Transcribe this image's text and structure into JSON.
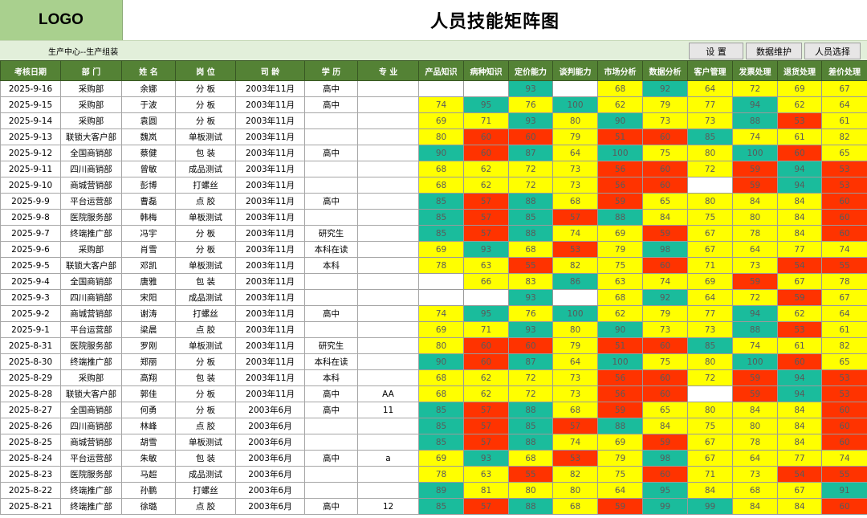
{
  "header": {
    "logo": "LOGO",
    "title": "人员技能矩阵图"
  },
  "subheader": {
    "subtitle": "生产中心--生产组装",
    "buttons": [
      {
        "label": "设 置"
      },
      {
        "label": "数据维护"
      },
      {
        "label": "人员选择"
      }
    ]
  },
  "colors": {
    "green": "#1abc9c",
    "yellow": "#ffff00",
    "red": "#ff3300",
    "header": "#548235"
  },
  "table": {
    "columns": [
      "考核日期",
      "部 门",
      "姓 名",
      "岗 位",
      "司 龄",
      "学 历",
      "专 业",
      "产品知识",
      "病种知识",
      "定价能力",
      "谈判能力",
      "市场分析",
      "数据分析",
      "客户管理",
      "发票处理",
      "退货处理",
      "差价处理"
    ],
    "rows": [
      {
        "date": "2025-9-16",
        "dept": "采购部",
        "name": "余娜",
        "post": "分 板",
        "tenure": "2003年11月",
        "edu": "高中",
        "major": "",
        "scores": [
          null,
          null,
          "93",
          null,
          "68",
          "92",
          "64",
          "72",
          "69",
          "67"
        ]
      },
      {
        "date": "2025-9-15",
        "dept": "采购部",
        "name": "于波",
        "post": "分 板",
        "tenure": "2003年11月",
        "edu": "高中",
        "major": "",
        "scores": [
          "74",
          "95",
          "76",
          "100",
          "62",
          "79",
          "77",
          "94",
          "62",
          "64"
        ]
      },
      {
        "date": "2025-9-14",
        "dept": "采购部",
        "name": "袁圆",
        "post": "分 板",
        "tenure": "2003年11月",
        "edu": "",
        "major": "",
        "scores": [
          "69",
          "71",
          "93",
          "80",
          "90",
          "73",
          "73",
          "88",
          "53",
          "61"
        ]
      },
      {
        "date": "2025-9-13",
        "dept": "联锁大客户部",
        "name": "魏岚",
        "post": "单板测试",
        "tenure": "2003年11月",
        "edu": "",
        "major": "",
        "scores": [
          "80",
          "60",
          "60",
          "79",
          "51",
          "60",
          "85",
          "74",
          "61",
          "82"
        ]
      },
      {
        "date": "2025-9-12",
        "dept": "全国商销部",
        "name": "蔡健",
        "post": "包 装",
        "tenure": "2003年11月",
        "edu": "高中",
        "major": "",
        "scores": [
          "90",
          "60",
          "87",
          "64",
          "100",
          "75",
          "80",
          "100",
          "60",
          "65"
        ]
      },
      {
        "date": "2025-9-11",
        "dept": "四川商销部",
        "name": "曾敏",
        "post": "成品测试",
        "tenure": "2003年11月",
        "edu": "",
        "major": "",
        "scores": [
          "68",
          "62",
          "72",
          "73",
          "56",
          "60",
          "72",
          "59",
          "94",
          "53"
        ]
      },
      {
        "date": "2025-9-10",
        "dept": "商城营销部",
        "name": "彭博",
        "post": "打螺丝",
        "tenure": "2003年11月",
        "edu": "",
        "major": "",
        "scores": [
          "68",
          "62",
          "72",
          "73",
          "56",
          "60",
          null,
          "59",
          "94",
          "53"
        ]
      },
      {
        "date": "2025-9-9",
        "dept": "平台运营部",
        "name": "曹磊",
        "post": "点 胶",
        "tenure": "2003年11月",
        "edu": "高中",
        "major": "",
        "scores": [
          "85",
          "57",
          "88",
          "68",
          "59",
          "65",
          "80",
          "84",
          "84",
          "60"
        ]
      },
      {
        "date": "2025-9-8",
        "dept": "医院服务部",
        "name": "韩梅",
        "post": "单板测试",
        "tenure": "2003年11月",
        "edu": "",
        "major": "",
        "scores": [
          "85",
          "57",
          "85",
          "57",
          "88",
          "84",
          "75",
          "80",
          "84",
          "60"
        ]
      },
      {
        "date": "2025-9-7",
        "dept": "终端推广部",
        "name": "冯宇",
        "post": "分 板",
        "tenure": "2003年11月",
        "edu": "研究生",
        "major": "",
        "scores": [
          "85",
          "57",
          "88",
          "74",
          "69",
          "59",
          "67",
          "78",
          "84",
          "60"
        ]
      },
      {
        "date": "2025-9-6",
        "dept": "采购部",
        "name": "肖雪",
        "post": "分 板",
        "tenure": "2003年11月",
        "edu": "本科在读",
        "major": "",
        "scores": [
          "69",
          "93",
          "68",
          "53",
          "79",
          "98",
          "67",
          "64",
          "77",
          "74"
        ]
      },
      {
        "date": "2025-9-5",
        "dept": "联锁大客户部",
        "name": "邓凯",
        "post": "单板测试",
        "tenure": "2003年11月",
        "edu": "本科",
        "major": "",
        "scores": [
          "78",
          "63",
          "55",
          "82",
          "75",
          "60",
          "71",
          "73",
          "54",
          "55"
        ]
      },
      {
        "date": "2025-9-4",
        "dept": "全国商销部",
        "name": "唐雅",
        "post": "包 装",
        "tenure": "2003年11月",
        "edu": "",
        "major": "",
        "scores": [
          null,
          "66",
          "83",
          "86",
          "63",
          "74",
          "69",
          "59",
          "67",
          "78"
        ]
      },
      {
        "date": "2025-9-3",
        "dept": "四川商销部",
        "name": "宋阳",
        "post": "成品测试",
        "tenure": "2003年11月",
        "edu": "",
        "major": "",
        "scores": [
          null,
          null,
          "93",
          null,
          "68",
          "92",
          "64",
          "72",
          "59",
          "67"
        ]
      },
      {
        "date": "2025-9-2",
        "dept": "商城营销部",
        "name": "谢涛",
        "post": "打螺丝",
        "tenure": "2003年11月",
        "edu": "高中",
        "major": "",
        "scores": [
          "74",
          "95",
          "76",
          "100",
          "62",
          "79",
          "77",
          "94",
          "62",
          "64"
        ]
      },
      {
        "date": "2025-9-1",
        "dept": "平台运营部",
        "name": "梁晨",
        "post": "点 胶",
        "tenure": "2003年11月",
        "edu": "",
        "major": "",
        "scores": [
          "69",
          "71",
          "93",
          "80",
          "90",
          "73",
          "73",
          "88",
          "53",
          "61"
        ]
      },
      {
        "date": "2025-8-31",
        "dept": "医院服务部",
        "name": "罗刚",
        "post": "单板测试",
        "tenure": "2003年11月",
        "edu": "研究生",
        "major": "",
        "scores": [
          "80",
          "60",
          "60",
          "79",
          "51",
          "60",
          "85",
          "74",
          "61",
          "82"
        ]
      },
      {
        "date": "2025-8-30",
        "dept": "终端推广部",
        "name": "郑丽",
        "post": "分 板",
        "tenure": "2003年11月",
        "edu": "本科在读",
        "major": "",
        "scores": [
          "90",
          "60",
          "87",
          "64",
          "100",
          "75",
          "80",
          "100",
          "60",
          "65"
        ]
      },
      {
        "date": "2025-8-29",
        "dept": "采购部",
        "name": "高翔",
        "post": "包 装",
        "tenure": "2003年11月",
        "edu": "本科",
        "major": "",
        "scores": [
          "68",
          "62",
          "72",
          "73",
          "56",
          "60",
          "72",
          "59",
          "94",
          "53"
        ]
      },
      {
        "date": "2025-8-28",
        "dept": "联锁大客户部",
        "name": "郭佳",
        "post": "分 板",
        "tenure": "2003年11月",
        "edu": "高中",
        "major": "AA",
        "scores": [
          "68",
          "62",
          "72",
          "73",
          "56",
          "60",
          null,
          "59",
          "94",
          "53"
        ]
      },
      {
        "date": "2025-8-27",
        "dept": "全国商销部",
        "name": "何勇",
        "post": "分 板",
        "tenure": "2003年6月",
        "edu": "高中",
        "major": "11",
        "scores": [
          "85",
          "57",
          "88",
          "68",
          "59",
          "65",
          "80",
          "84",
          "84",
          "60"
        ]
      },
      {
        "date": "2025-8-26",
        "dept": "四川商销部",
        "name": "林峰",
        "post": "点 胶",
        "tenure": "2003年6月",
        "edu": "",
        "major": "",
        "scores": [
          "85",
          "57",
          "85",
          "57",
          "88",
          "84",
          "75",
          "80",
          "84",
          "60"
        ]
      },
      {
        "date": "2025-8-25",
        "dept": "商城营销部",
        "name": "胡雪",
        "post": "单板测试",
        "tenure": "2003年6月",
        "edu": "",
        "major": "",
        "scores": [
          "85",
          "57",
          "88",
          "74",
          "69",
          "59",
          "67",
          "78",
          "84",
          "60"
        ]
      },
      {
        "date": "2025-8-24",
        "dept": "平台运营部",
        "name": "朱敏",
        "post": "包 装",
        "tenure": "2003年6月",
        "edu": "高中",
        "major": "a",
        "scores": [
          "69",
          "93",
          "68",
          "53",
          "79",
          "98",
          "67",
          "64",
          "77",
          "74"
        ]
      },
      {
        "date": "2025-8-23",
        "dept": "医院服务部",
        "name": "马超",
        "post": "成品测试",
        "tenure": "2003年6月",
        "edu": "",
        "major": "",
        "scores": [
          "78",
          "63",
          "55",
          "82",
          "75",
          "60",
          "71",
          "73",
          "54",
          "55"
        ]
      },
      {
        "date": "2025-8-22",
        "dept": "终端推广部",
        "name": "孙鹏",
        "post": "打螺丝",
        "tenure": "2003年6月",
        "edu": "",
        "major": "",
        "scores": [
          "89",
          "81",
          "80",
          "80",
          "64",
          "95",
          "84",
          "68",
          "67",
          "91"
        ]
      },
      {
        "date": "2025-8-21",
        "dept": "终端推广部",
        "name": "徐璐",
        "post": "点 胶",
        "tenure": "2003年6月",
        "edu": "高中",
        "major": "12",
        "scores": [
          "85",
          "57",
          "88",
          "68",
          "59",
          "99",
          "99",
          "84",
          "84",
          "60"
        ]
      }
    ]
  }
}
